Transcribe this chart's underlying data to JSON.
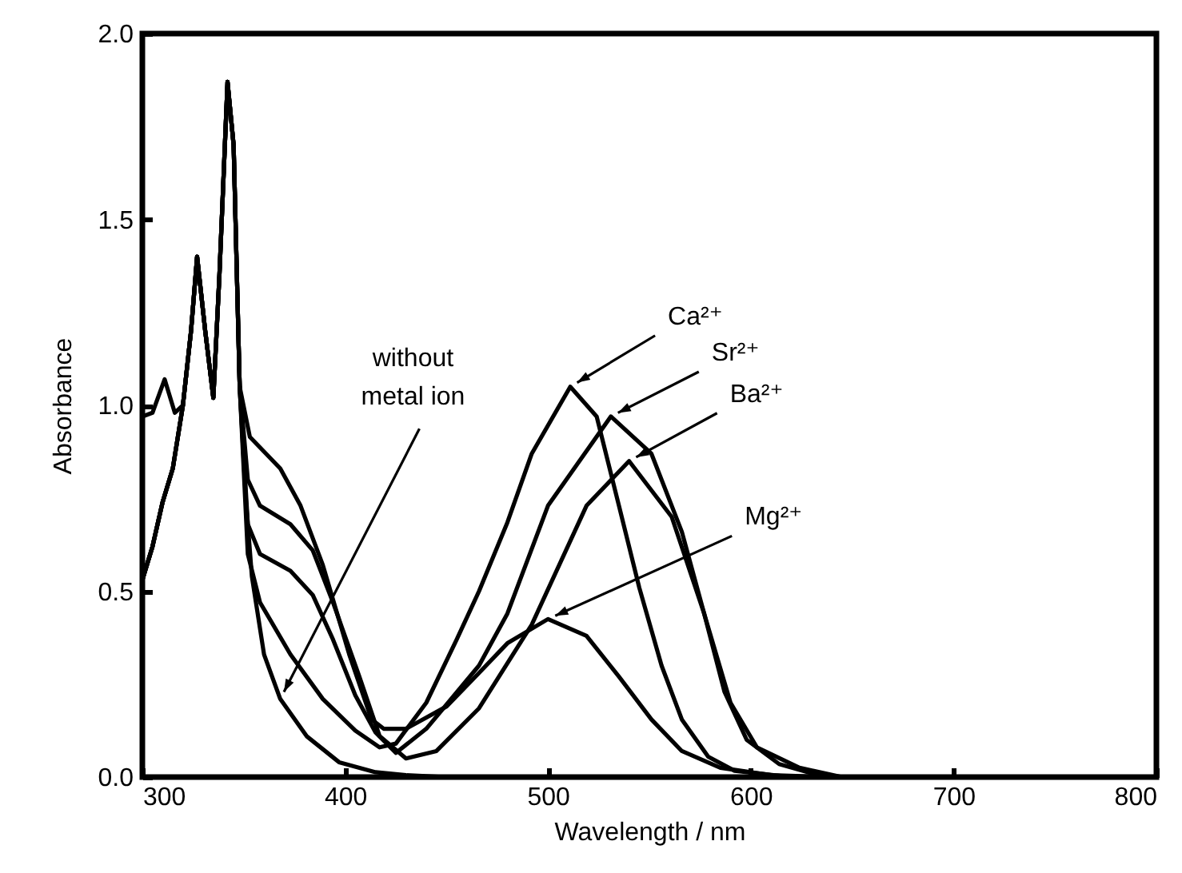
{
  "chart_data": {
    "type": "line",
    "xlabel": "Wavelength / nm",
    "ylabel": "Absorbance",
    "xlim": [
      300,
      800
    ],
    "ylim": [
      0,
      2
    ],
    "xticks": [
      300,
      400,
      500,
      600,
      700,
      800
    ],
    "yticks": [
      {
        "value": 0,
        "label": "0.0"
      },
      {
        "value": 0.5,
        "label": "0.5"
      },
      {
        "value": 1,
        "label": "1.0"
      },
      {
        "value": 1.5,
        "label": "1.5"
      },
      {
        "value": 2,
        "label": "2.0"
      }
    ],
    "grid": false,
    "legend": false,
    "marker": "none",
    "line_style": "solid",
    "series": [
      {
        "color": "#000000",
        "x": [
          300,
          305,
          310,
          315,
          320,
          324,
          327,
          331,
          335,
          338,
          342,
          345,
          348,
          352,
          358,
          373,
          389,
          405,
          417,
          425,
          440,
          455,
          466,
          480,
          492,
          511,
          524,
          535,
          545,
          556,
          566,
          579,
          592,
          620
        ],
        "values": [
          0.53,
          0.62,
          0.74,
          0.83,
          1.0,
          1.2,
          1.4,
          1.2,
          1.02,
          1.35,
          1.87,
          1.7,
          1.05,
          0.6,
          0.47,
          0.33,
          0.21,
          0.125,
          0.08,
          0.09,
          0.2,
          0.37,
          0.5,
          0.685,
          0.87,
          1.05,
          0.97,
          0.73,
          0.51,
          0.3,
          0.155,
          0.055,
          0.017,
          0
        ]
      },
      {
        "color": "#000000",
        "x": [
          300,
          305,
          310,
          315,
          320,
          324,
          327,
          331,
          335,
          338,
          342,
          345,
          348,
          352,
          358,
          373,
          384,
          394,
          405,
          415,
          425,
          440,
          466,
          480,
          500,
          531,
          551,
          566,
          577,
          587,
          598,
          614,
          630,
          645
        ],
        "values": [
          0.53,
          0.62,
          0.74,
          0.83,
          1.0,
          1.2,
          1.4,
          1.2,
          1.02,
          1.35,
          1.87,
          1.7,
          1.05,
          0.68,
          0.6,
          0.555,
          0.49,
          0.37,
          0.22,
          0.12,
          0.065,
          0.13,
          0.3,
          0.44,
          0.73,
          0.97,
          0.87,
          0.66,
          0.44,
          0.23,
          0.1,
          0.035,
          0.01,
          0
        ]
      },
      {
        "color": "#000000",
        "x": [
          300,
          305,
          310,
          315,
          320,
          324,
          327,
          331,
          335,
          338,
          342,
          345,
          348,
          352,
          358,
          373,
          384,
          394,
          407,
          417,
          430,
          445,
          466,
          492,
          519,
          540,
          561,
          577,
          590,
          603,
          624,
          645
        ],
        "values": [
          0.53,
          0.62,
          0.74,
          0.83,
          1.0,
          1.2,
          1.4,
          1.2,
          1.02,
          1.35,
          1.87,
          1.7,
          1.05,
          0.8,
          0.73,
          0.68,
          0.61,
          0.47,
          0.27,
          0.11,
          0.05,
          0.07,
          0.185,
          0.41,
          0.73,
          0.85,
          0.7,
          0.44,
          0.2,
          0.08,
          0.025,
          0
        ]
      },
      {
        "color": "#000000",
        "x": [
          300,
          305,
          310,
          315,
          320,
          324,
          327,
          331,
          335,
          338,
          342,
          345,
          348,
          353,
          368,
          378,
          389,
          402,
          413,
          419,
          430,
          450,
          466,
          480,
          500,
          519,
          535,
          551,
          566,
          585,
          610,
          640
        ],
        "values": [
          0.53,
          0.62,
          0.74,
          0.83,
          1.0,
          1.2,
          1.4,
          1.2,
          1.02,
          1.35,
          1.87,
          1.7,
          1.05,
          0.915,
          0.83,
          0.73,
          0.57,
          0.33,
          0.155,
          0.13,
          0.13,
          0.19,
          0.28,
          0.36,
          0.425,
          0.38,
          0.27,
          0.155,
          0.07,
          0.025,
          0.005,
          0
        ]
      },
      {
        "color": "#000000",
        "x": [
          300,
          305,
          311,
          316,
          320,
          324,
          327,
          331,
          335,
          338,
          342,
          345,
          348,
          351,
          354,
          360,
          368,
          381,
          397,
          415,
          430,
          450
        ],
        "values": [
          0.97,
          0.98,
          1.07,
          0.98,
          1.0,
          1.2,
          1.4,
          1.2,
          1.02,
          1.35,
          1.87,
          1.7,
          1.05,
          0.75,
          0.54,
          0.33,
          0.21,
          0.11,
          0.04,
          0.013,
          0.005,
          0
        ]
      }
    ],
    "annotations": [
      {
        "text": "Ca²⁺",
        "x": 511,
        "y": 1.05
      },
      {
        "text": "Sr²⁺",
        "x": 531,
        "y": 0.97
      },
      {
        "text": "Ba²⁺",
        "x": 540,
        "y": 0.85
      },
      {
        "text": "Mg²⁺",
        "x": 500,
        "y": 0.425
      },
      {
        "text": "without metal ion",
        "x": 368,
        "y": 0.21
      }
    ]
  }
}
